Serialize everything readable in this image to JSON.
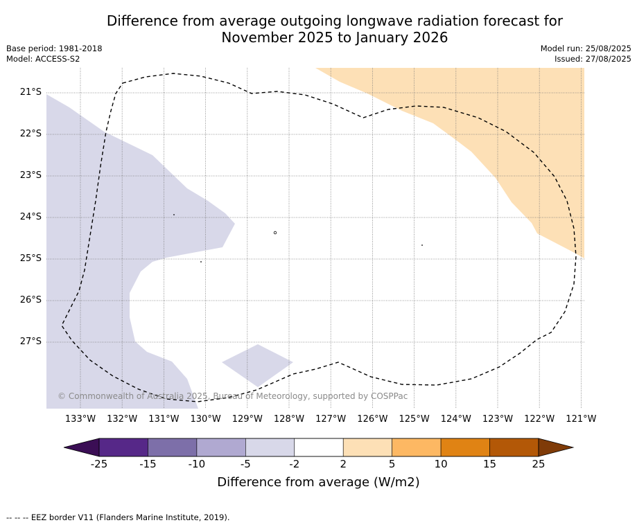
{
  "title_line1": "Difference from average outgoing longwave radiation forecast for",
  "title_line2": "November 2025 to January 2026",
  "meta_left": {
    "base_period": "Base period: 1981-2018",
    "model": "Model: ACCESS-S2"
  },
  "meta_right": {
    "model_run": "Model run: 25/08/2025",
    "issued": "Issued: 27/08/2025"
  },
  "map": {
    "lat_ticks": [
      "21°S",
      "22°S",
      "23°S",
      "24°S",
      "25°S",
      "26°S",
      "27°S"
    ],
    "lon_ticks": [
      "133°W",
      "132°W",
      "131°W",
      "130°W",
      "129°W",
      "128°W",
      "127°W",
      "126°W",
      "125°W",
      "124°W",
      "123°W",
      "122°W",
      "121°W"
    ],
    "copyright": "© Commonwealth of Australia 2025, Bureau of Meteorology, supported by COSPPac",
    "colors": {
      "negative_light": "#d8d8e9",
      "positive_light": "#fde0b6",
      "eez_line": "#000000",
      "grid": "#777777"
    }
  },
  "colorbar": {
    "labels": [
      "-25",
      "-15",
      "-10",
      "-5",
      "-2",
      "2",
      "5",
      "10",
      "15",
      "25"
    ],
    "colors": [
      "#3b0e55",
      "#562888",
      "#7d6fa9",
      "#b0a9d1",
      "#d8d8e9",
      "#ffffff",
      "#fde0b6",
      "#fdb863",
      "#e08314",
      "#b35807",
      "#7f3b08"
    ],
    "title": "Difference from average (W/m2)"
  },
  "footnote": "--  --  -- EEZ border V11 (Flanders Marine Institute, 2019)."
}
